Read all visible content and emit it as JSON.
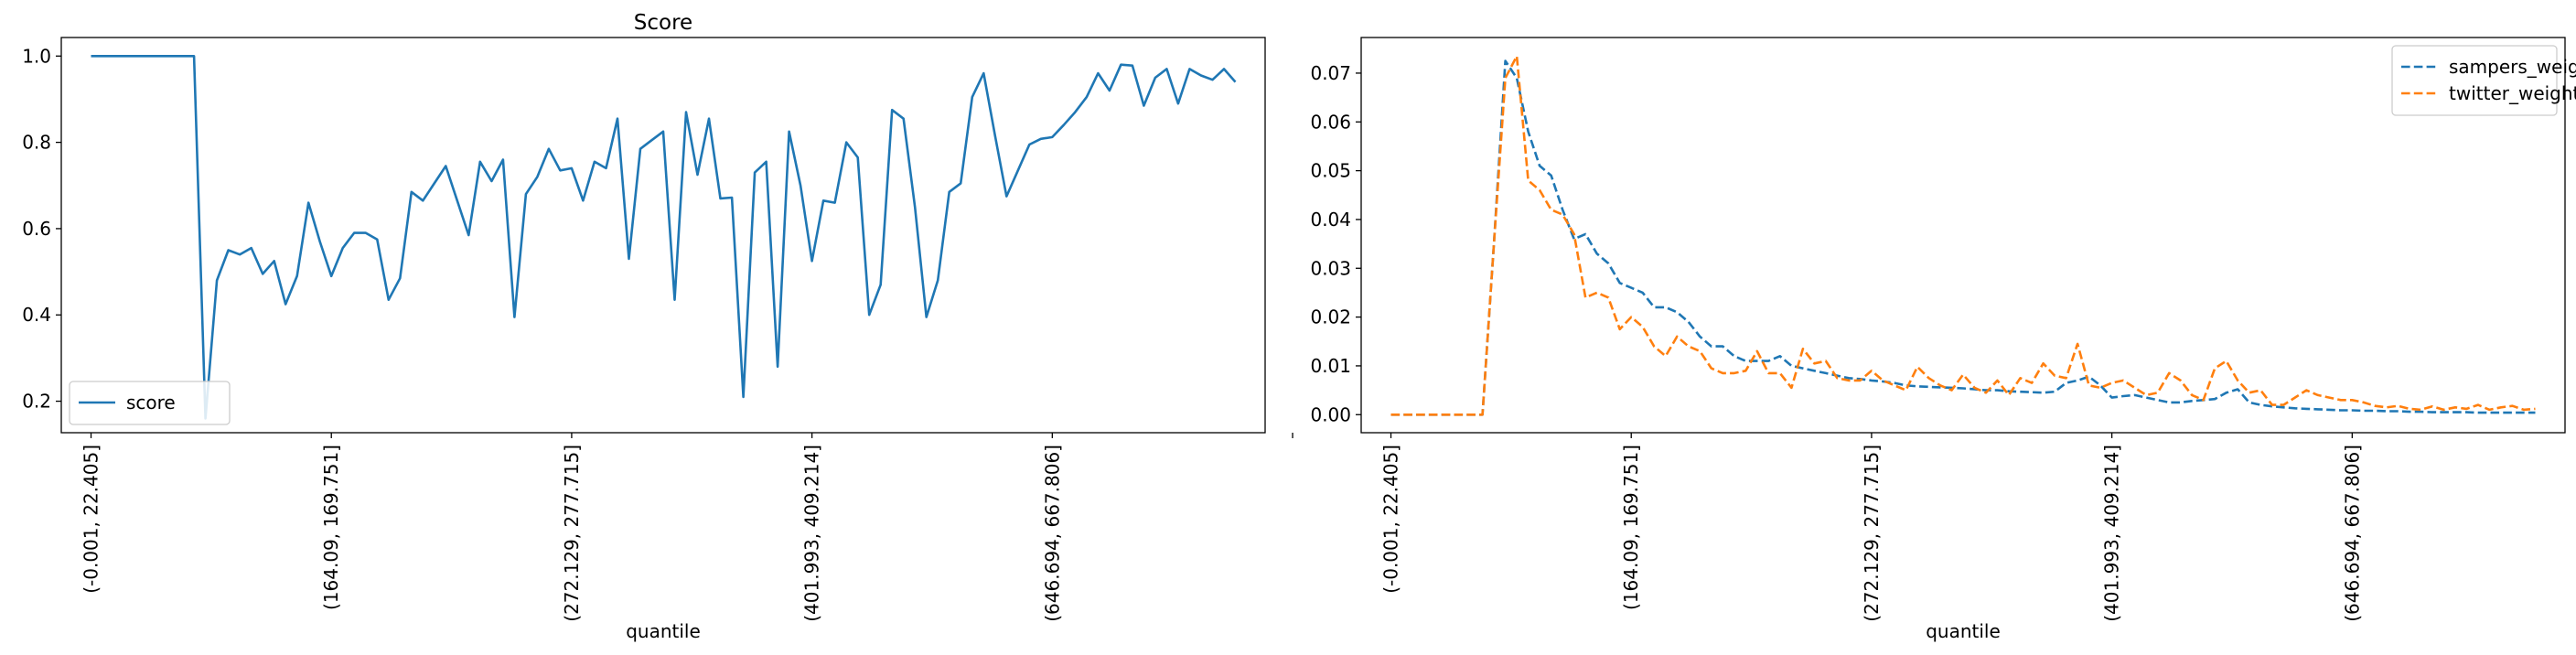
{
  "chart_data": [
    {
      "type": "line",
      "title": "Score",
      "xlabel": "quantile",
      "ylabel": "",
      "x_tick_labels": [
        "(-0.001, 22.405]",
        "(164.09, 169.751]",
        "(272.129, 277.715]",
        "(401.993, 409.214]",
        "(646.694, 667.806]",
        ""
      ],
      "yticks": [
        "0.2",
        "0.4",
        "0.6",
        "0.8",
        "1.0"
      ],
      "ylim": [
        0.127,
        1.043
      ],
      "legend": "lower-left",
      "grid": false,
      "series": [
        {
          "name": "score",
          "color": "#1f77b4",
          "style": "solid",
          "values": [
            1.0,
            1.0,
            1.0,
            1.0,
            1.0,
            1.0,
            1.0,
            1.0,
            1.0,
            1.0,
            0.16,
            0.48,
            0.55,
            0.54,
            0.555,
            0.495,
            0.525,
            0.425,
            0.49,
            0.66,
            0.57,
            0.49,
            0.555,
            0.59,
            0.59,
            0.575,
            0.435,
            0.485,
            0.685,
            0.665,
            0.705,
            0.745,
            0.665,
            0.585,
            0.755,
            0.71,
            0.76,
            0.395,
            0.68,
            0.72,
            0.785,
            0.735,
            0.74,
            0.665,
            0.755,
            0.74,
            0.855,
            0.53,
            0.785,
            0.805,
            0.825,
            0.435,
            0.87,
            0.725,
            0.855,
            0.67,
            0.672,
            0.21,
            0.73,
            0.755,
            0.28,
            0.825,
            0.7,
            0.525,
            0.665,
            0.66,
            0.8,
            0.765,
            0.4,
            0.47,
            0.875,
            0.855,
            0.65,
            0.395,
            0.48,
            0.685,
            0.705,
            0.905,
            0.96,
            0.815,
            0.675,
            0.735,
            0.795,
            0.808,
            0.812,
            0.84,
            0.87,
            0.905,
            0.96,
            0.92,
            0.98,
            0.978,
            0.885,
            0.95,
            0.97,
            0.89,
            0.97,
            0.955,
            0.945,
            0.97,
            0.94
          ]
        }
      ]
    },
    {
      "type": "line",
      "title": "",
      "xlabel": "quantile",
      "ylabel": "",
      "x_tick_labels": [
        "(-0.001, 22.405]",
        "(164.09, 169.751]",
        "(272.129, 277.715]",
        "(401.993, 409.214]",
        "(646.694, 667.806]",
        ""
      ],
      "yticks": [
        "0.00",
        "0.01",
        "0.02",
        "0.03",
        "0.04",
        "0.05",
        "0.06",
        "0.07"
      ],
      "ylim": [
        -0.0037,
        0.0773
      ],
      "legend": "top-right",
      "grid": false,
      "series": [
        {
          "name": "sampers_weight",
          "color": "#1f77b4",
          "style": "dashed",
          "values": [
            0,
            0,
            0,
            0,
            0,
            0,
            0,
            0,
            0,
            0.035,
            0.0725,
            0.069,
            0.058,
            0.051,
            0.049,
            0.042,
            0.036,
            0.037,
            0.033,
            0.031,
            0.027,
            0.026,
            0.025,
            0.022,
            0.022,
            0.021,
            0.019,
            0.016,
            0.014,
            0.014,
            0.012,
            0.011,
            0.011,
            0.011,
            0.012,
            0.01,
            0.0095,
            0.009,
            0.0085,
            0.008,
            0.0075,
            0.0073,
            0.007,
            0.0068,
            0.0065,
            0.006,
            0.0058,
            0.0057,
            0.0056,
            0.0055,
            0.0054,
            0.0052,
            0.005,
            0.005,
            0.0048,
            0.0047,
            0.0046,
            0.0045,
            0.0047,
            0.0065,
            0.007,
            0.0078,
            0.006,
            0.0035,
            0.0038,
            0.004,
            0.0035,
            0.003,
            0.0025,
            0.0025,
            0.0028,
            0.003,
            0.0032,
            0.0045,
            0.0052,
            0.0025,
            0.002,
            0.0017,
            0.0015,
            0.0013,
            0.0012,
            0.0011,
            0.001,
            0.0009,
            0.0009,
            0.0008,
            0.0008,
            0.0007,
            0.0007,
            0.0006,
            0.0006,
            0.0005,
            0.0005,
            0.0005,
            0.0005,
            0.0004,
            0.0004,
            0.0004,
            0.0004,
            0.0004,
            0.0004
          ]
        },
        {
          "name": "twitter_weight",
          "color": "#ff7f0e",
          "style": "dashed",
          "values": [
            0,
            0,
            0,
            0,
            0,
            0,
            0,
            0,
            0,
            0.035,
            0.069,
            0.0735,
            0.048,
            0.046,
            0.042,
            0.041,
            0.037,
            0.024,
            0.025,
            0.024,
            0.0175,
            0.02,
            0.018,
            0.014,
            0.012,
            0.016,
            0.014,
            0.013,
            0.0095,
            0.0085,
            0.0085,
            0.009,
            0.013,
            0.0085,
            0.0085,
            0.0055,
            0.0135,
            0.0105,
            0.011,
            0.0075,
            0.007,
            0.007,
            0.009,
            0.007,
            0.006,
            0.005,
            0.0098,
            0.0075,
            0.006,
            0.005,
            0.0082,
            0.0055,
            0.0045,
            0.007,
            0.004,
            0.0075,
            0.0065,
            0.0105,
            0.008,
            0.0075,
            0.0145,
            0.006,
            0.0055,
            0.0065,
            0.007,
            0.0055,
            0.004,
            0.0045,
            0.0085,
            0.007,
            0.004,
            0.003,
            0.0095,
            0.011,
            0.007,
            0.0045,
            0.005,
            0.002,
            0.002,
            0.0035,
            0.005,
            0.004,
            0.0035,
            0.003,
            0.003,
            0.0025,
            0.0018,
            0.0015,
            0.0018,
            0.0012,
            0.001,
            0.0017,
            0.001,
            0.0015,
            0.0012,
            0.002,
            0.001,
            0.0015,
            0.0018,
            0.001,
            0.0012
          ]
        }
      ]
    }
  ]
}
